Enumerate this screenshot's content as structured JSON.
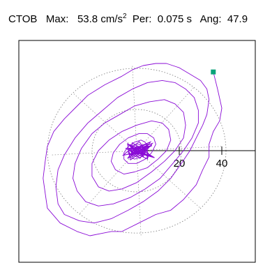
{
  "header": {
    "station": "CTOB",
    "max_label": "Max:",
    "max_value": "53.8",
    "max_unit": "cm/s",
    "max_unit_exp": "2",
    "per_label": "Per:",
    "per_value": "0.075 s",
    "ang_label": "Ang:",
    "ang_value": "47.9"
  },
  "chart_data": {
    "type": "scatter",
    "description_free": true,
    "max_amplitude": 53.8,
    "angle_deg": 47.9,
    "period_s": 0.075,
    "ring_radii": [
      20,
      40
    ],
    "ring_labels": [
      "20",
      "40"
    ],
    "series_color": "#8a0ad6",
    "marker_color": "#0aa37a",
    "end_point": [
      36,
      37
    ],
    "orbit": [
      [
        36,
        37
      ],
      [
        38,
        29
      ],
      [
        40,
        20
      ],
      [
        39,
        14
      ],
      [
        36,
        9
      ],
      [
        34,
        3
      ],
      [
        34,
        -3
      ],
      [
        31,
        -9
      ],
      [
        28,
        -16
      ],
      [
        22,
        -23
      ],
      [
        16,
        -28
      ],
      [
        9,
        -30
      ],
      [
        1,
        -34
      ],
      [
        -7,
        -38
      ],
      [
        -12,
        -38
      ],
      [
        -17,
        -39
      ],
      [
        -22,
        -40
      ],
      [
        -28,
        -38
      ],
      [
        -36,
        -34
      ],
      [
        -42,
        -27
      ],
      [
        -43,
        -20
      ],
      [
        -44,
        -13
      ],
      [
        -43,
        -5
      ],
      [
        -42,
        2
      ],
      [
        -39,
        9
      ],
      [
        -34,
        15
      ],
      [
        -29,
        20
      ],
      [
        -23,
        26
      ],
      [
        -15,
        31
      ],
      [
        -7,
        35
      ],
      [
        -2,
        38
      ],
      [
        3,
        40
      ],
      [
        9,
        41
      ],
      [
        14,
        41
      ],
      [
        20,
        39
      ],
      [
        25,
        36
      ],
      [
        30,
        33
      ],
      [
        33,
        29
      ],
      [
        34,
        24
      ],
      [
        33,
        17
      ],
      [
        31,
        12
      ],
      [
        28,
        6
      ],
      [
        25,
        0
      ],
      [
        21,
        -6
      ],
      [
        16,
        -13
      ],
      [
        10,
        -19
      ],
      [
        3,
        -24
      ],
      [
        -4,
        -28
      ],
      [
        -12,
        -32
      ],
      [
        -20,
        -34
      ],
      [
        -27,
        -33
      ],
      [
        -34,
        -30
      ],
      [
        -37,
        -25
      ],
      [
        -38,
        -17
      ],
      [
        -37,
        -9
      ],
      [
        -34,
        -2
      ],
      [
        -29,
        6
      ],
      [
        -23,
        13
      ],
      [
        -16,
        19
      ],
      [
        -9,
        25
      ],
      [
        -2,
        29
      ],
      [
        5,
        32
      ],
      [
        12,
        33
      ],
      [
        18,
        32
      ],
      [
        23,
        29
      ],
      [
        27,
        25
      ],
      [
        29,
        19
      ],
      [
        29,
        13
      ],
      [
        26,
        6
      ],
      [
        22,
        0
      ],
      [
        17,
        -6
      ],
      [
        11,
        -13
      ],
      [
        4,
        -18
      ],
      [
        -3,
        -22
      ],
      [
        -11,
        -25
      ],
      [
        -18,
        -26
      ],
      [
        -24,
        -24
      ],
      [
        -28,
        -19
      ],
      [
        -30,
        -13
      ],
      [
        -29,
        -6
      ],
      [
        -26,
        1
      ],
      [
        -21,
        8
      ],
      [
        -15,
        13
      ],
      [
        -8,
        17
      ],
      [
        -1,
        21
      ],
      [
        6,
        23
      ],
      [
        13,
        24
      ],
      [
        18,
        22
      ],
      [
        22,
        18
      ],
      [
        23,
        12
      ],
      [
        22,
        6
      ],
      [
        18,
        0
      ],
      [
        13,
        -5
      ],
      [
        7,
        -10
      ],
      [
        0,
        -15
      ],
      [
        -7,
        -18
      ],
      [
        -13,
        -19
      ],
      [
        -18,
        -17
      ],
      [
        -21,
        -12
      ],
      [
        -21,
        -6
      ],
      [
        -18,
        0
      ],
      [
        -13,
        5
      ],
      [
        -7,
        9
      ],
      [
        0,
        12
      ],
      [
        7,
        14
      ],
      [
        12,
        13
      ],
      [
        15,
        10
      ],
      [
        16,
        5
      ],
      [
        14,
        0
      ],
      [
        10,
        -4
      ],
      [
        5,
        -8
      ],
      [
        -1,
        -10
      ],
      [
        -6,
        -11
      ],
      [
        -10,
        -9
      ],
      [
        -12,
        -5
      ],
      [
        -11,
        -1
      ],
      [
        -8,
        3
      ],
      [
        -4,
        6
      ],
      [
        1,
        8
      ],
      [
        5,
        8
      ],
      [
        8,
        6
      ],
      [
        9,
        3
      ],
      [
        7,
        -1
      ],
      [
        4,
        -4
      ],
      [
        0,
        -6
      ],
      [
        -4,
        -6
      ],
      [
        -6,
        -4
      ],
      [
        -6,
        -1
      ],
      [
        -4,
        2
      ],
      [
        -1,
        4
      ],
      [
        2,
        5
      ],
      [
        4,
        4
      ],
      [
        5,
        2
      ],
      [
        4,
        -1
      ],
      [
        2,
        -3
      ],
      [
        -1,
        -4
      ],
      [
        -3,
        -3
      ],
      [
        -4,
        -1
      ],
      [
        -3,
        1
      ],
      [
        -1,
        3
      ],
      [
        1,
        3
      ],
      [
        3,
        2
      ],
      [
        3,
        0
      ],
      [
        2,
        -2
      ],
      [
        0,
        -3
      ],
      [
        -2,
        -2
      ],
      [
        -2,
        0
      ],
      [
        -1,
        1
      ],
      [
        0,
        2
      ]
    ]
  }
}
